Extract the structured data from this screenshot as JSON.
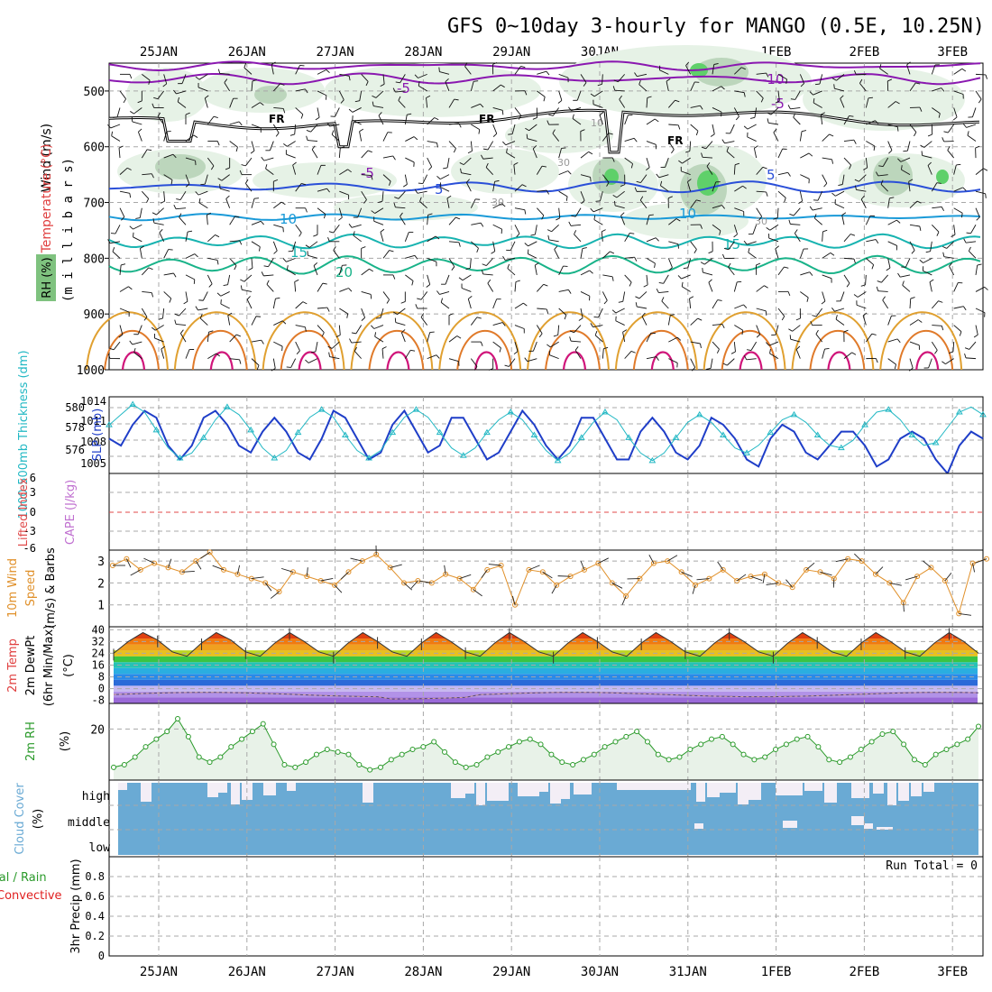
{
  "title": "GFS 0~10day 3-hourly for MANGO (0.5E, 10.25N)",
  "dates": [
    "25JAN",
    "26JAN",
    "27JAN",
    "28JAN",
    "29JAN",
    "30JAN",
    "31JAN",
    "1FEB",
    "2FEB",
    "3FEB"
  ],
  "colors": {
    "rh_fill": "#e6f2e6",
    "rh_mid": "#bcd6bc",
    "rh_dark": "#8fb38f",
    "rh_green": "#5fd06a",
    "freeze": "#000000",
    "temp_purple": "#8a18b0",
    "temp_blue": "#2a4fd8",
    "temp_lightblue": "#1a9ad8",
    "temp_teal": "#17b3b0",
    "temp_green": "#19b389",
    "temp_orange": "#e0a030",
    "temp_darkorange": "#e07a2a",
    "temp_magenta": "#d0157a",
    "slp": "#1f3ec8",
    "thickness": "#22b8c4",
    "lifted": "#e04a4a",
    "cape": "#c070d0",
    "wind10m": "#e0902a",
    "rh2m": "#2a9a2a",
    "cloud": "#6aaad4",
    "cloud_clear": "#f3eef6",
    "precip_total": "#2a9a2a",
    "precip_conv": "#e02020"
  },
  "panels": {
    "upper": {
      "axis_label_wind": "Wind (m/s)",
      "axis_label_temp": "Temperature (°C)",
      "axis_label_rh": "RH (%)",
      "axis_label_mb": "(m i l l i b a r s)",
      "yticks": [
        "500",
        "600",
        "700",
        "800",
        "900",
        "1000"
      ],
      "contour_labels": [
        "-10",
        "-5",
        "-5",
        "5",
        "5",
        "-5",
        "10",
        "10",
        "15",
        "15",
        "20",
        "FR",
        "FR",
        "FR",
        "10",
        "30",
        "30",
        "30"
      ]
    },
    "slp": {
      "label_thickness": "1000-500mb Thickness (dm)",
      "label_slp": "SLP (mb)",
      "left_ticks": [
        "580",
        "578",
        "576"
      ],
      "right_ticks": [
        "1014",
        "1011",
        "1008",
        "1005"
      ]
    },
    "lifted": {
      "label_li": "Lifted Index",
      "label_cape": "CAPE (J/kg)",
      "ticks": [
        "6",
        "3",
        "0",
        "-3",
        "-6"
      ]
    },
    "wind": {
      "label_main": "10m Wind",
      "label_sub": "Speed",
      "label_units": "(m/s) & Barbs",
      "ticks": [
        "3",
        "2",
        "1"
      ]
    },
    "temp": {
      "label_1": "2m Temp",
      "label_2": "2m DewPt",
      "label_3": "(6hr Min/Max)",
      "label_units": "(°C)",
      "ticks": [
        "40",
        "32",
        "24",
        "16",
        "8",
        "0",
        "-8"
      ]
    },
    "rh": {
      "label": "2m RH",
      "label_units": "(%)",
      "ticks": [
        "20"
      ]
    },
    "cloud": {
      "label": "Cloud Cover",
      "label_units": "(%)",
      "levels": [
        "high",
        "middle",
        "low"
      ]
    },
    "precip": {
      "label_main": "3hr Precip (mm)",
      "label_total": "Total / Rain",
      "label_conv": "Convective",
      "run_total": "Run Total = 0",
      "ticks": [
        "0.8",
        "0.6",
        "0.4",
        "0.2",
        "0"
      ]
    }
  },
  "chart_data": {
    "type": "multi-panel meteogram",
    "time_axis": [
      "25JAN",
      "26JAN",
      "27JAN",
      "28JAN",
      "29JAN",
      "30JAN",
      "31JAN",
      "1FEB",
      "2FEB",
      "3FEB"
    ],
    "series": [
      {
        "name": "SLP (mb)",
        "values": [
          1009,
          1008,
          1011,
          1013,
          1012,
          1008,
          1006,
          1008,
          1012,
          1013,
          1011,
          1008,
          1007,
          1010,
          1012,
          1010,
          1007,
          1006,
          1009,
          1013,
          1012,
          1009,
          1006,
          1007,
          1011,
          1013,
          1010,
          1007,
          1008,
          1012,
          1012,
          1009,
          1006,
          1007,
          1010,
          1013,
          1011,
          1008,
          1006,
          1008,
          1012,
          1012,
          1009,
          1006,
          1006,
          1010,
          1012,
          1010,
          1007,
          1006,
          1008,
          1012,
          1011,
          1009,
          1006,
          1005,
          1009,
          1011,
          1010,
          1007,
          1006,
          1008,
          1010,
          1010,
          1008,
          1005,
          1006,
          1009,
          1010,
          1009,
          1006,
          1004,
          1008,
          1010,
          1009
        ]
      },
      {
        "name": "1000-500mb Thickness (dm)",
        "values": [
          578.8,
          579.6,
          580.4,
          579.8,
          578.4,
          577.0,
          576.2,
          576.6,
          577.8,
          579.2,
          580.2,
          579.6,
          578.4,
          577.0,
          576.2,
          576.8,
          578.2,
          579.4,
          580.0,
          579.4,
          578.0,
          576.8,
          576.2,
          576.8,
          578.2,
          579.4,
          580.0,
          579.4,
          578.2,
          577.0,
          576.4,
          577.0,
          578.2,
          579.2,
          579.8,
          579.2,
          578.0,
          576.8,
          576.0,
          576.6,
          577.8,
          579.0,
          579.8,
          579.2,
          577.8,
          576.6,
          576.0,
          576.6,
          577.8,
          579.0,
          579.6,
          579.0,
          578.0,
          577.0,
          576.6,
          577.2,
          578.2,
          579.2,
          579.6,
          579.0,
          578.0,
          577.2,
          577.0,
          577.6,
          578.8,
          579.8,
          580.0,
          579.2,
          578.0,
          577.2,
          577.4,
          578.6,
          579.8,
          580.2,
          579.6
        ]
      },
      {
        "name": "Lifted Index",
        "values": [
          0
        ]
      },
      {
        "name": "10m Wind Speed (m/s)",
        "values": [
          2.8,
          3.1,
          2.6,
          2.9,
          2.7,
          2.5,
          3.0,
          3.4,
          2.6,
          2.4,
          2.2,
          2.0,
          1.6,
          2.5,
          2.3,
          2.1,
          1.9,
          2.5,
          3.0,
          3.3,
          2.7,
          2.0,
          2.1,
          2.0,
          2.4,
          2.2,
          1.7,
          2.6,
          2.8,
          1.0,
          2.6,
          2.5,
          1.9,
          2.3,
          2.6,
          2.9,
          2.0,
          1.4,
          2.2,
          2.9,
          3.0,
          2.5,
          1.9,
          2.2,
          2.6,
          2.1,
          2.3,
          2.4,
          2.0,
          1.8,
          2.6,
          2.5,
          2.2,
          3.1,
          3.0,
          2.4,
          2.0,
          1.1,
          2.3,
          2.7,
          2.1,
          0.6,
          2.9,
          3.1
        ]
      },
      {
        "name": "2m Temp (°C)",
        "values": [
          24,
          32,
          38,
          33,
          25,
          22,
          31,
          38,
          33,
          25,
          22,
          31,
          38,
          32,
          25,
          22,
          31,
          38,
          32,
          25,
          22,
          31,
          38,
          32,
          25,
          22,
          31,
          38,
          32,
          25,
          22,
          31,
          38,
          32,
          25,
          22,
          31,
          38,
          32,
          25,
          22,
          31,
          38,
          32,
          25,
          22,
          31,
          38,
          32,
          25,
          22,
          31,
          38,
          32,
          25,
          22,
          31,
          38,
          32,
          24
        ]
      },
      {
        "name": "2m RH (%)",
        "values": [
          5,
          6,
          9,
          13,
          16,
          19,
          24,
          17,
          9,
          7,
          9,
          13,
          16,
          19,
          22,
          14,
          6,
          5,
          7,
          10,
          12,
          11,
          10,
          6,
          4,
          5,
          8,
          10,
          12,
          13,
          15,
          11,
          7,
          5,
          6,
          9,
          11,
          13,
          15,
          16,
          14,
          10,
          7,
          6,
          8,
          10,
          13,
          15,
          17,
          19,
          15,
          10,
          8,
          9,
          12,
          14,
          16,
          17,
          14,
          10,
          8,
          9,
          12,
          14,
          16,
          17,
          13,
          8,
          7,
          9,
          12,
          15,
          18,
          19,
          14,
          8,
          6,
          10,
          12,
          14,
          16,
          21
        ]
      }
    ],
    "ylim_upper_mb": [
      450,
      1000
    ],
    "ylim_slp": [
      1004,
      1015
    ],
    "ylim_thickness": [
      575,
      581
    ],
    "ylim_lifted": [
      -6,
      6
    ],
    "ylim_wind": [
      0,
      3.5
    ],
    "ylim_temp": [
      -10,
      42
    ],
    "ylim_rh": [
      0,
      30
    ],
    "ylim_precip": [
      0,
      1.0
    ]
  }
}
